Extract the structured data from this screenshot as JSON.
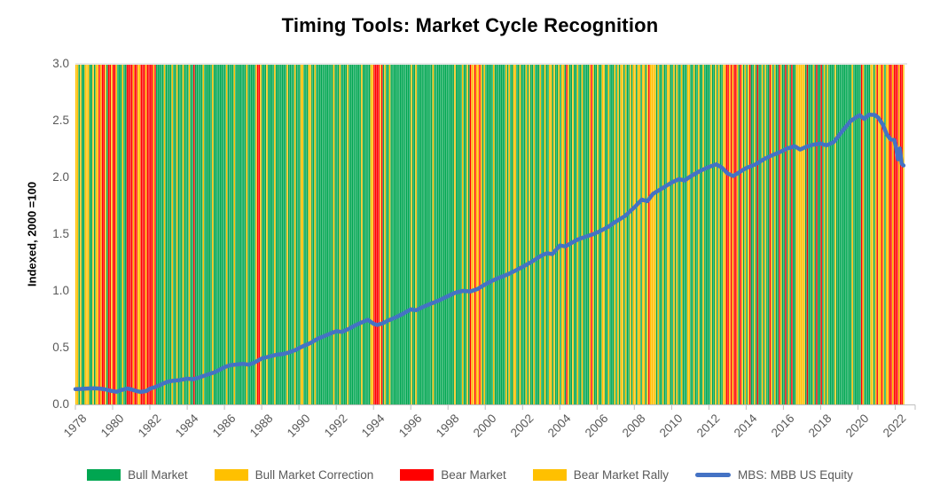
{
  "page": {
    "background": "#FFFFFF"
  },
  "chart_data": {
    "type": "line",
    "title": "Timing Tools: Market Cycle Recognition",
    "ylabel": "Indexed, 2000 =100",
    "ylim": [
      0.0,
      3.0
    ],
    "ytick_labels": [
      "0.0",
      "0.5",
      "1.0",
      "1.5",
      "2.0",
      "2.5",
      "3.0"
    ],
    "ytick_values": [
      0.0,
      0.5,
      1.0,
      1.5,
      2.0,
      2.5,
      3.0
    ],
    "xtick_labels": [
      "1978",
      "1980",
      "1982",
      "1984",
      "1986",
      "1988",
      "1990",
      "1992",
      "1994",
      "1996",
      "1998",
      "2000",
      "2002",
      "2004",
      "2006",
      "2008",
      "2010",
      "2012",
      "2014",
      "2016",
      "2018",
      "2020",
      "2022"
    ],
    "xtick_values": [
      1978,
      1980,
      1982,
      1984,
      1986,
      1988,
      1990,
      1992,
      1994,
      1996,
      1998,
      2000,
      2002,
      2004,
      2006,
      2008,
      2010,
      2012,
      2014,
      2016,
      2018,
      2020,
      2022
    ],
    "x_domain_years": [
      1978,
      2022.5
    ],
    "grid": "off",
    "legend_position": "bottom",
    "band_colors": {
      "bull": "#00A651",
      "correction": "#FFC000",
      "bear": "#FF0000",
      "rally": "#FFC000"
    },
    "bands_monthly": {
      "start_year": 1978,
      "legend_key": {
        "G": "bull",
        "C": "correction",
        "R": "bear",
        "L": "rally"
      },
      "codes_by_year": [
        "CCGCGGCCCGGC",
        "GCCRLRRCGRRL",
        "RRLGGGCGGRRR",
        "RLRRLLRRRLRR",
        "RRLRGGGGGCGG",
        "GGCGGCGGGCGG",
        "GCGGRGGGGGCG",
        "GGGGCGGGGGGG",
        "GCGGGGCGGGGG",
        "GGCGGGGGCRRC",
        "GGGCGGGGCGGG",
        "GGGGCGGGGCGG",
        "GCCGGGCCGGCG",
        "GGGGGGGGGGCG",
        "GGCGGGGCGGGG",
        "GGGGCGGGGGCC",
        "RRRRCRGCGGCG",
        "GGGGGGGGGGGG",
        "CGGCGGGGGGGG",
        "GGCGGGGGGGGG",
        "GGGGCGGGGCGG",
        "CGRCCRCCRCGC",
        "GGGGGCGGGGGG",
        "GCGCGGCCGGCG",
        "GGCGCGGCGGGC",
        "GGCGGCCGCGGC",
        "GCCGRCGGCGGC",
        "GGCGGGGCRCGG",
        "CGGCCGGCGGGC",
        "GCGCCGCGGCGC",
        "CGCCGCCGCRCC",
        "CCGCGGCGGCCG",
        "GCGCGGCGGGCC",
        "GGCGGCGGCGGG",
        "GCGGCGCGGCCR",
        "RCRCRRCGRCGC",
        "GCRGGCGRGGCG",
        "CGGRCGCGGRCG",
        "GRGCGRGGCCCC",
        "CCGRGGGCGRGG",
        "RGCGCGGGGCGG",
        "GGGGGGGGCGGG",
        "GGRCGGGGCCGC",
        "RCCRLGCLRRLR",
        "RRLRRL"
      ]
    },
    "series": [
      {
        "name": "MBS: MBB US Equity",
        "color": "#4472C4",
        "points": [
          [
            1978.0,
            0.135
          ],
          [
            1978.3,
            0.137
          ],
          [
            1978.6,
            0.14
          ],
          [
            1979.0,
            0.142
          ],
          [
            1979.3,
            0.14
          ],
          [
            1979.6,
            0.133
          ],
          [
            1979.9,
            0.12
          ],
          [
            1980.2,
            0.112
          ],
          [
            1980.5,
            0.128
          ],
          [
            1980.8,
            0.14
          ],
          [
            1981.0,
            0.133
          ],
          [
            1981.2,
            0.122
          ],
          [
            1981.5,
            0.11
          ],
          [
            1981.8,
            0.118
          ],
          [
            1982.0,
            0.138
          ],
          [
            1982.3,
            0.155
          ],
          [
            1982.6,
            0.175
          ],
          [
            1982.9,
            0.198
          ],
          [
            1983.2,
            0.208
          ],
          [
            1983.6,
            0.214
          ],
          [
            1984.0,
            0.227
          ],
          [
            1984.3,
            0.221
          ],
          [
            1984.6,
            0.235
          ],
          [
            1985.0,
            0.258
          ],
          [
            1985.5,
            0.285
          ],
          [
            1986.0,
            0.328
          ],
          [
            1986.3,
            0.345
          ],
          [
            1986.7,
            0.352
          ],
          [
            1987.0,
            0.358
          ],
          [
            1987.3,
            0.35
          ],
          [
            1987.6,
            0.368
          ],
          [
            1988.0,
            0.405
          ],
          [
            1988.4,
            0.422
          ],
          [
            1988.8,
            0.438
          ],
          [
            1989.1,
            0.443
          ],
          [
            1989.4,
            0.455
          ],
          [
            1989.8,
            0.478
          ],
          [
            1990.2,
            0.512
          ],
          [
            1990.6,
            0.54
          ],
          [
            1991.0,
            0.578
          ],
          [
            1991.5,
            0.612
          ],
          [
            1992.0,
            0.645
          ],
          [
            1992.3,
            0.638
          ],
          [
            1992.7,
            0.668
          ],
          [
            1993.0,
            0.695
          ],
          [
            1993.4,
            0.725
          ],
          [
            1993.7,
            0.745
          ],
          [
            1994.0,
            0.71
          ],
          [
            1994.2,
            0.7
          ],
          [
            1994.5,
            0.715
          ],
          [
            1994.8,
            0.74
          ],
          [
            1995.2,
            0.768
          ],
          [
            1995.6,
            0.8
          ],
          [
            1996.0,
            0.838
          ],
          [
            1996.3,
            0.83
          ],
          [
            1996.6,
            0.855
          ],
          [
            1997.0,
            0.882
          ],
          [
            1997.5,
            0.915
          ],
          [
            1998.0,
            0.955
          ],
          [
            1998.4,
            0.985
          ],
          [
            1998.8,
            1.0
          ],
          [
            1999.2,
            0.995
          ],
          [
            1999.6,
            1.018
          ],
          [
            2000.0,
            1.058
          ],
          [
            2000.4,
            1.092
          ],
          [
            2000.8,
            1.12
          ],
          [
            2001.2,
            1.145
          ],
          [
            2001.6,
            1.178
          ],
          [
            2002.0,
            1.212
          ],
          [
            2002.5,
            1.258
          ],
          [
            2003.0,
            1.31
          ],
          [
            2003.3,
            1.332
          ],
          [
            2003.6,
            1.324
          ],
          [
            2004.0,
            1.4
          ],
          [
            2004.3,
            1.392
          ],
          [
            2004.7,
            1.43
          ],
          [
            2005.0,
            1.455
          ],
          [
            2005.4,
            1.478
          ],
          [
            2005.8,
            1.5
          ],
          [
            2006.2,
            1.53
          ],
          [
            2006.6,
            1.565
          ],
          [
            2007.0,
            1.61
          ],
          [
            2007.5,
            1.66
          ],
          [
            2008.0,
            1.735
          ],
          [
            2008.4,
            1.805
          ],
          [
            2008.7,
            1.79
          ],
          [
            2009.0,
            1.855
          ],
          [
            2009.5,
            1.905
          ],
          [
            2010.0,
            1.955
          ],
          [
            2010.4,
            1.985
          ],
          [
            2010.7,
            1.972
          ],
          [
            2011.0,
            2.008
          ],
          [
            2011.5,
            2.055
          ],
          [
            2012.0,
            2.092
          ],
          [
            2012.4,
            2.115
          ],
          [
            2012.7,
            2.085
          ],
          [
            2013.0,
            2.035
          ],
          [
            2013.3,
            2.012
          ],
          [
            2013.7,
            2.052
          ],
          [
            2014.0,
            2.082
          ],
          [
            2014.5,
            2.115
          ],
          [
            2015.0,
            2.165
          ],
          [
            2015.4,
            2.195
          ],
          [
            2015.8,
            2.222
          ],
          [
            2016.2,
            2.255
          ],
          [
            2016.6,
            2.275
          ],
          [
            2016.9,
            2.245
          ],
          [
            2017.2,
            2.268
          ],
          [
            2017.6,
            2.288
          ],
          [
            2018.0,
            2.298
          ],
          [
            2018.3,
            2.282
          ],
          [
            2018.7,
            2.31
          ],
          [
            2019.0,
            2.375
          ],
          [
            2019.3,
            2.435
          ],
          [
            2019.6,
            2.495
          ],
          [
            2019.9,
            2.53
          ],
          [
            2020.1,
            2.548
          ],
          [
            2020.35,
            2.515
          ],
          [
            2020.6,
            2.553
          ],
          [
            2020.9,
            2.55
          ],
          [
            2021.1,
            2.525
          ],
          [
            2021.35,
            2.462
          ],
          [
            2021.55,
            2.38
          ],
          [
            2021.75,
            2.335
          ],
          [
            2021.95,
            2.33
          ],
          [
            2022.05,
            2.262
          ],
          [
            2022.15,
            2.158
          ],
          [
            2022.25,
            2.255
          ],
          [
            2022.35,
            2.12
          ],
          [
            2022.45,
            2.105
          ]
        ]
      }
    ],
    "legend": [
      {
        "label": "Bull Market",
        "color": "#00A651",
        "swatch": "rect"
      },
      {
        "label": "Bull Market Correction",
        "color": "#FFC000",
        "swatch": "rect"
      },
      {
        "label": "Bear Market",
        "color": "#FF0000",
        "swatch": "rect"
      },
      {
        "label": "Bear Market Rally",
        "color": "#FFC000",
        "swatch": "rect"
      },
      {
        "label": "MBS: MBB US Equity",
        "color": "#4472C4",
        "swatch": "line"
      }
    ]
  }
}
